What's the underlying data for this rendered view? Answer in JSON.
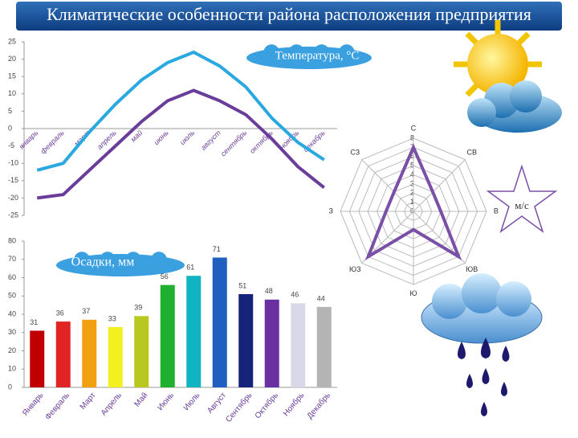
{
  "title": "Климатические особенности района расположения предприятия",
  "chart_data": [
    {
      "type": "line",
      "annotation": "Температура, °С",
      "categories": [
        "январь",
        "февраль",
        "март",
        "апрель",
        "май",
        "июнь",
        "июль",
        "август",
        "сентябрь",
        "октябрь",
        "ноябрь",
        "декабрь"
      ],
      "series": [
        {
          "color": "#2aa8e0",
          "values": [
            -12,
            -10,
            -1,
            7,
            14,
            19,
            22,
            18,
            12,
            3,
            -4,
            -9
          ]
        },
        {
          "color": "#6a3d9a",
          "values": [
            -20,
            -19,
            -12,
            -5,
            2,
            8,
            11,
            8,
            4,
            -3,
            -11,
            -17
          ]
        }
      ],
      "ylim": [
        -25,
        25
      ],
      "yticks": [
        -25,
        -20,
        -15,
        -10,
        -5,
        0,
        5,
        10,
        15,
        20,
        25
      ]
    },
    {
      "type": "bar",
      "annotation": "Осадки, мм",
      "categories": [
        "Январь",
        "Февраль",
        "Март",
        "Апрель",
        "Май",
        "Июнь",
        "Июль",
        "Август",
        "Сентябрь",
        "Октябрь",
        "Ноябрь",
        "Декабрь"
      ],
      "values": [
        31,
        36,
        37,
        33,
        39,
        56,
        61,
        71,
        51,
        48,
        46,
        44
      ],
      "colors": [
        "#c00000",
        "#e02424",
        "#f0a010",
        "#f2f020",
        "#b8c820",
        "#20b030",
        "#10b4c0",
        "#1f5fc0",
        "#15237a",
        "#6a2fa0",
        "#d8d8e8",
        "#b4b4b4"
      ],
      "ylim": [
        0,
        80
      ],
      "yticks": [
        0,
        10,
        20,
        30,
        40,
        50,
        60,
        70,
        80
      ]
    },
    {
      "type": "radar",
      "annotation": "м/с",
      "categories": [
        "С",
        "СВ",
        "В",
        "ЮВ",
        "Ю",
        "ЮЗ",
        "З",
        "СЗ"
      ],
      "values": [
        7,
        3,
        3,
        7,
        2,
        7,
        3,
        3
      ],
      "color": "#7a4fa8",
      "rlim": [
        0,
        8
      ],
      "rticks": [
        0,
        1,
        2,
        3,
        4,
        5,
        6,
        7,
        8
      ]
    }
  ]
}
